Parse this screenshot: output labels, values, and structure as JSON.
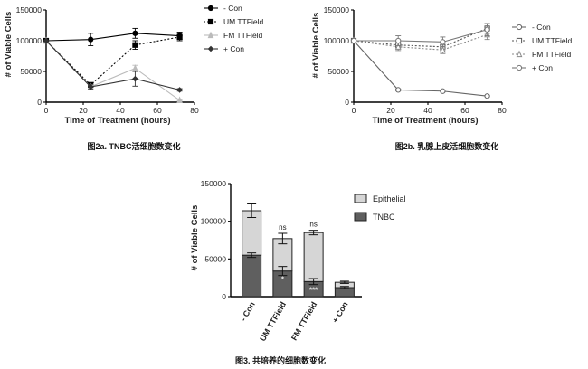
{
  "chart_data": [
    {
      "id": "fig2a",
      "type": "line",
      "caption": "图2a. TNBC活细胞数变化",
      "xlabel": "Time of Treatment (hours)",
      "ylabel": "# of Viable Cells",
      "xlim": [
        0,
        80
      ],
      "ylim": [
        0,
        150000
      ],
      "xticks": [
        0,
        20,
        40,
        60,
        80
      ],
      "yticks": [
        0,
        50000,
        100000,
        150000
      ],
      "x": [
        0,
        24,
        48,
        72
      ],
      "series": [
        {
          "name": "- Con",
          "values": [
            100000,
            102000,
            112000,
            108000
          ],
          "err": [
            0,
            10000,
            8000,
            6000
          ],
          "color": "#000000",
          "dash": "",
          "marker": "circle-filled"
        },
        {
          "name": "UM TTField",
          "values": [
            100000,
            28000,
            93000,
            106000
          ],
          "err": [
            0,
            4000,
            7000,
            6000
          ],
          "color": "#000000",
          "dash": "2,2",
          "marker": "square-filled"
        },
        {
          "name": "FM TTField",
          "values": [
            100000,
            25000,
            55000,
            3000
          ],
          "err": [
            0,
            3000,
            5000,
            1000
          ],
          "color": "#bbbbbb",
          "dash": "",
          "marker": "triangle-filled"
        },
        {
          "name": "+ Con",
          "values": [
            100000,
            25000,
            38000,
            20000
          ],
          "err": [
            0,
            4000,
            12000,
            2000
          ],
          "color": "#333333",
          "dash": "",
          "marker": "diamond-filled"
        }
      ],
      "legend_position": "right"
    },
    {
      "id": "fig2b",
      "type": "line",
      "caption": "图2b. 乳腺上皮活细胞数变化",
      "xlabel": "Time of Treatment (hours)",
      "ylabel": "# of Viable Cells",
      "xlim": [
        0,
        80
      ],
      "ylim": [
        0,
        150000
      ],
      "xticks": [
        0,
        20,
        40,
        60,
        80
      ],
      "yticks": [
        0,
        50000,
        100000,
        150000
      ],
      "x": [
        0,
        24,
        48,
        72
      ],
      "series": [
        {
          "name": "- Con",
          "values": [
            100000,
            20000,
            18000,
            10000
          ],
          "err": [
            0,
            1500,
            1500,
            1000
          ],
          "color": "#666666",
          "dash": "",
          "marker": "circle-open"
        },
        {
          "name": "UM TTField",
          "values": [
            100000,
            93000,
            90000,
            120000
          ],
          "err": [
            0,
            6000,
            6000,
            8000
          ],
          "color": "#555555",
          "dash": "2,2",
          "marker": "square-open"
        },
        {
          "name": "FM TTField",
          "values": [
            100000,
            90000,
            85000,
            110000
          ],
          "err": [
            0,
            6000,
            6000,
            8000
          ],
          "color": "#888888",
          "dash": "2,2",
          "marker": "triangle-open"
        },
        {
          "name": "+ Con",
          "values": [
            100000,
            100000,
            98000,
            118000
          ],
          "err": [
            0,
            8000,
            8000,
            10000
          ],
          "color": "#777777",
          "dash": "",
          "marker": "circle-open"
        }
      ],
      "legend_position": "right"
    },
    {
      "id": "fig3",
      "type": "bar",
      "stacked": true,
      "caption": "图3. 共培养的细胞数变化",
      "xlabel": "",
      "ylabel": "# of Viable Cells",
      "ylim": [
        0,
        150000
      ],
      "yticks": [
        0,
        50000,
        100000,
        150000
      ],
      "categories": [
        "- Con",
        "UM TTField",
        "FM TTField",
        "+ Con"
      ],
      "series": [
        {
          "name": "TNBC",
          "values": [
            55000,
            34000,
            20000,
            12000
          ],
          "err": [
            3000,
            6000,
            4000,
            1500
          ],
          "color": "#5f5f5f"
        },
        {
          "name": "Epithelial",
          "values": [
            59000,
            43000,
            65000,
            7000
          ],
          "err": [
            9000,
            7000,
            3000,
            1500
          ],
          "color": "#d6d6d6"
        }
      ],
      "annotations": [
        {
          "category": "UM TTField",
          "top": "ns",
          "inside_tnbc": "*"
        },
        {
          "category": "FM TTField",
          "top": "ns",
          "inside_tnbc": "***"
        }
      ],
      "legend_order": [
        "Epithelial",
        "TNBC"
      ],
      "legend_position": "right"
    }
  ]
}
